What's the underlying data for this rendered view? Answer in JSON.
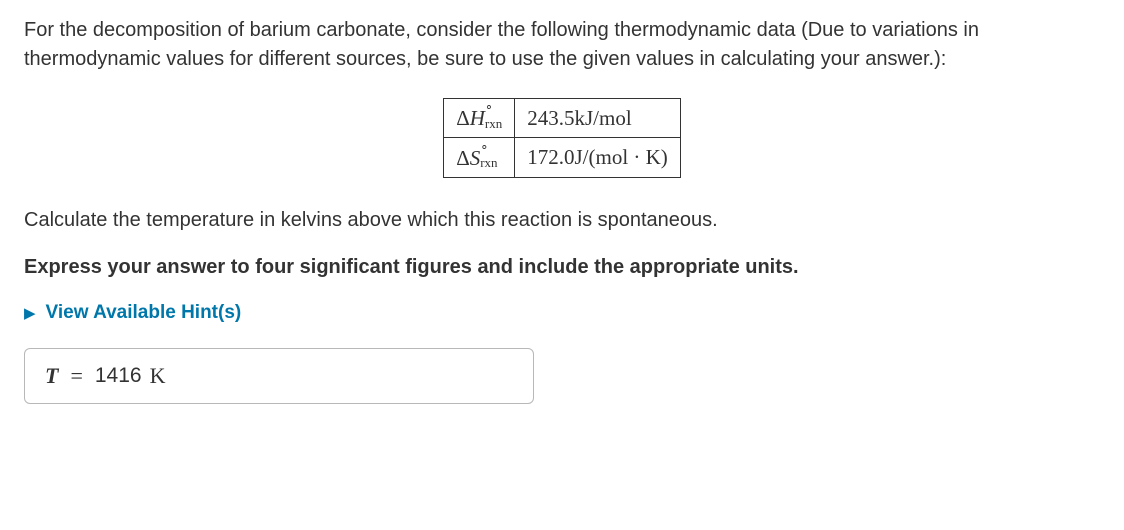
{
  "intro": "For the decomposition of barium carbonate, consider the following thermodynamic data (Due to variations in thermodynamic values for different sources, be sure to use the given values in calculating your answer.):",
  "table": {
    "rows": [
      {
        "label_delta": "Δ",
        "label_var": "H",
        "label_sup": "∘",
        "label_sub": "rxn",
        "value_num": "243.5",
        "value_unit": "kJ/mol"
      },
      {
        "label_delta": "Δ",
        "label_var": "S",
        "label_sup": "∘",
        "label_sub": "rxn",
        "value_num": "172.0",
        "value_unit": "J/(mol · K)"
      }
    ],
    "border_color": "#333333"
  },
  "question": "Calculate the temperature in kelvins above which this reaction is spontaneous.",
  "instruction": "Express your answer to four significant figures and include the appropriate units.",
  "hints": {
    "caret": "▶",
    "label": "View Available Hint(s)",
    "color": "#0077aa"
  },
  "answer": {
    "var": "T",
    "eq": "=",
    "value": "1416",
    "unit": "K"
  },
  "style": {
    "body_font_size": 20,
    "table_font_size": 21,
    "answer_font_size": 22,
    "text_color": "#333333",
    "background_color": "#ffffff",
    "link_color": "#0077aa",
    "border_color": "#b8b8b8"
  }
}
